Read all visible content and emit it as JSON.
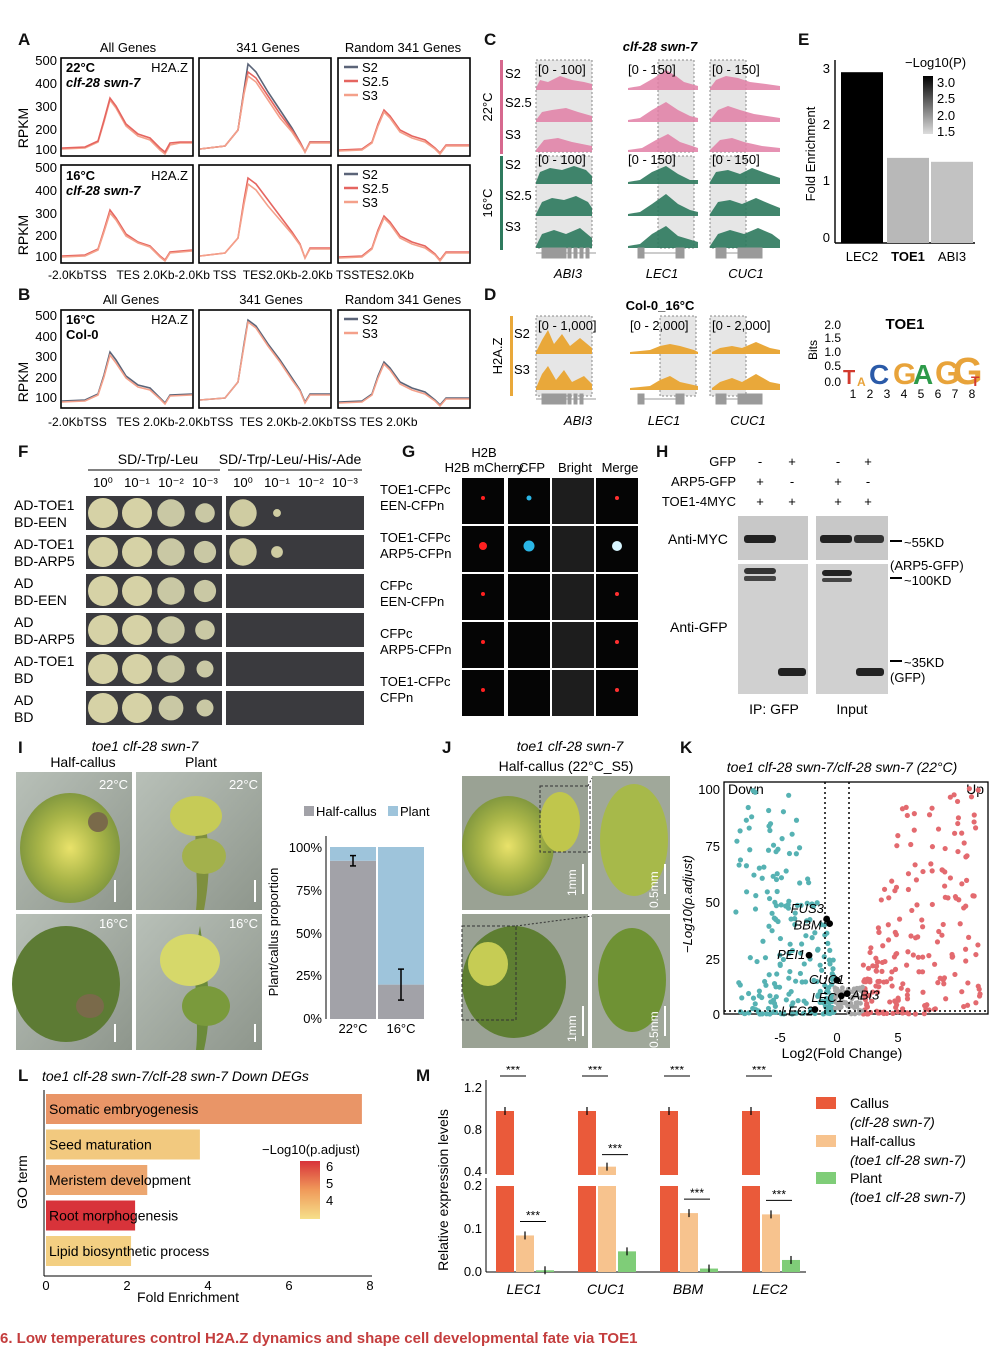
{
  "panelA": {
    "letter": "A",
    "col_titles": [
      "All Genes",
      "341 Genes",
      "Random 341 Genes"
    ],
    "ylabel": "RPKM",
    "yticks": [
      "500",
      "400",
      "300",
      "200",
      "100"
    ],
    "row1": {
      "temp": "22°C",
      "genotype": "clf-28 swn-7",
      "mark": "H2A.Z",
      "legend": [
        "S2",
        "S2.5",
        "S3"
      ]
    },
    "row2": {
      "temp": "16°C",
      "genotype": "clf-28 swn-7",
      "mark": "H2A.Z",
      "legend": [
        "S2",
        "S2.5",
        "S3"
      ]
    },
    "xticks": "-2.0KbTSS   TES 2.0Kb-2.0Kb TSS  TES2.0Kb-2.0Kb TSSTES2.0Kb"
  },
  "panelB": {
    "letter": "B",
    "col_titles": [
      "All Genes",
      "341 Genes",
      "Random 341 Genes"
    ],
    "ylabel": "RPKM",
    "yticks": [
      "500",
      "400",
      "300",
      "200",
      "100"
    ],
    "temp": "16°C",
    "genotype": "Col-0",
    "mark": "H2A.Z",
    "legend": [
      "S2",
      "S3"
    ],
    "xticks": "-2.0KbTSS   TES 2.0Kb-2.0KbTSS  TES 2.0Kb-2.0KbTSS TES 2.0Kb"
  },
  "panelC": {
    "letter": "C",
    "title": "clf-28 swn-7",
    "temps": [
      "22°C",
      "16°C"
    ],
    "stages": [
      "S2",
      "S2.5",
      "S3"
    ],
    "ranges_top": [
      "[0 - 100]",
      "[0 - 150]",
      "[0 - 150]"
    ],
    "ranges_bottom": [
      "[0 - 100]",
      "[0 - 150]",
      "[0 - 150]"
    ],
    "genes": [
      "ABI3",
      "LEC1",
      "CUC1"
    ]
  },
  "panelD": {
    "letter": "D",
    "title": "Col-0_16°C",
    "ylabel": "H2A.Z",
    "stages": [
      "S2",
      "S3"
    ],
    "ranges": [
      "[0 - 1,000]",
      "[0 - 2,000]",
      "[0 - 2,000]"
    ],
    "genes": [
      "ABI3",
      "LEC1",
      "CUC1"
    ]
  },
  "panelE": {
    "letter": "E",
    "ylabel": "Fold Enrichment",
    "legend_title": "−Log10(P)",
    "legend_ticks": [
      "3.0",
      "2.5",
      "2.0",
      "1.5"
    ],
    "motif_title": "TOE1",
    "motif_ylabel": "Bits",
    "motif_yticks": [
      "2.0",
      "1.5",
      "1.0",
      "0.5",
      "0.0"
    ],
    "motif_positions": [
      "1",
      "2",
      "3",
      "4",
      "5",
      "6",
      "7",
      "8"
    ]
  },
  "panelF": {
    "letter": "F",
    "media": [
      "SD/-Trp/-Leu",
      "SD/-Trp/-Leu/-His/-Ade"
    ],
    "dilutions": [
      "10⁰",
      "10⁻¹",
      "10⁻²",
      "10⁻³"
    ],
    "rows": [
      [
        "AD-TOE1",
        "BD-EEN"
      ],
      [
        "AD-TOE1",
        "BD-ARP5"
      ],
      [
        "AD",
        "BD-EEN"
      ],
      [
        "AD",
        "BD-ARP5"
      ],
      [
        "AD-TOE1",
        "BD"
      ],
      [
        "AD",
        "BD"
      ]
    ]
  },
  "panelG": {
    "letter": "G",
    "cols": [
      "H2B mCherry",
      "CFP",
      "Bright",
      "Merge"
    ],
    "rows": [
      [
        "TOE1-CFPc",
        "EEN-CFPn"
      ],
      [
        "TOE1-CFPc",
        "ARP5-CFPn"
      ],
      [
        "CFPc",
        "EEN-CFPn"
      ],
      [
        "CFPc",
        "ARP5-CFPn"
      ],
      [
        "TOE1-CFPc",
        "CFPn"
      ]
    ]
  },
  "panelH": {
    "letter": "H",
    "rows": [
      {
        "name": "GFP",
        "vals": [
          "-",
          "+",
          "-",
          "+"
        ]
      },
      {
        "name": "ARP5-GFP",
        "vals": [
          "+",
          "-",
          "+",
          "-"
        ]
      },
      {
        "name": "TOE1-4MYC",
        "vals": [
          "+",
          "+",
          "+",
          "+"
        ]
      }
    ],
    "blot_top": "Anti-MYC",
    "blot_bottom": "Anti-GFP",
    "sizes": [
      "~55KD",
      "(ARP5-GFP)",
      "~100KD",
      "~35KD",
      "(GFP)"
    ],
    "lanes": [
      "IP: GFP",
      "Input"
    ]
  },
  "panelI": {
    "letter": "I",
    "title": "toe1 clf-28 swn-7",
    "col_labels": [
      "Half-callus",
      "Plant"
    ],
    "temps": [
      "22°C",
      "22°C",
      "16°C",
      "16°C"
    ],
    "chart_legend": [
      "Half-callus",
      "Plant"
    ],
    "chart_ylabel": "Plant/callus proportion",
    "chart_yticks": [
      "100%",
      "75%",
      "50%",
      "25%",
      "0%"
    ]
  },
  "panelJ": {
    "letter": "J",
    "title": "toe1 clf-28 swn-7",
    "subtitle": "Half-callus  (22°C_S5)",
    "scales": [
      "1mm",
      "0.5mm",
      "1mm",
      "0.5mm"
    ]
  },
  "panelK": {
    "letter": "K",
    "title": "toe1 clf-28 swn-7/clf-28 swn-7 (22°C)",
    "down": "Down",
    "up": "Up",
    "ylabel": "−Log10(p.adjust)",
    "xlabel": "Log2(Fold Change)",
    "yticks": [
      "100",
      "75",
      "50",
      "25",
      "0"
    ],
    "xticks": [
      "-5",
      "0",
      "5"
    ]
  },
  "panelL": {
    "letter": "L",
    "title": "toe1 clf-28 swn-7/clf-28 swn-7 Down DEGs",
    "ylabel": "GO term",
    "xlabel": "Fold Enrichment",
    "legend_title": "−Log10(p.adjust)",
    "legend_ticks": [
      "6",
      "5",
      "4"
    ]
  },
  "panelM": {
    "letter": "M",
    "ylabel": "Relative expression levels",
    "yticks_top": [
      "1.2",
      "0.8",
      "0.4"
    ],
    "yticks_bottom": [
      "0.2",
      "0.1",
      "0.0"
    ],
    "sig": "***",
    "legend": [
      [
        "Callus",
        "(clf-28 swn-7)"
      ],
      [
        "Half-callus",
        "(toe1 clf-28 swn-7)"
      ],
      [
        "Plant",
        "(toe1 clf-28 swn-7)"
      ]
    ]
  },
  "caption": "6. Low temperatures control H2A.Z dynamics and shape cell developmental fate via TOE1",
  "chart_data": [
    {
      "type": "bar",
      "title": "",
      "categories": [
        "LEC2",
        "TOE1",
        "ABI3"
      ],
      "values": [
        3.05,
        1.52,
        1.45
      ],
      "ylabel": "Fold Enrichment",
      "ylim": [
        0,
        3.2
      ],
      "colors": [
        "#000000",
        "#b8b8b8",
        "#c2c2c2"
      ]
    },
    {
      "type": "bar",
      "title": "",
      "categories": [
        "22°C",
        "16°C"
      ],
      "series": [
        {
          "name": "Half-callus",
          "values": [
            0.92,
            0.2
          ]
        },
        {
          "name": "Plant",
          "values": [
            0.08,
            0.8
          ]
        }
      ],
      "errors": [
        [
          0.03,
          0.09
        ],
        [
          0.03,
          0.09
        ]
      ],
      "ylabel": "Plant/callus proportion",
      "ylim": [
        0,
        1
      ]
    },
    {
      "type": "bar",
      "title": "toe1 clf-28 swn-7/clf-28 swn-7 Down DEGs",
      "categories": [
        "Somatic embryogenesis",
        "Seed maturation",
        "Meristem development",
        "Root morphogenesis",
        "Lipid biosynthetic process"
      ],
      "values": [
        7.8,
        3.8,
        2.5,
        2.2,
        2.1
      ],
      "color_values": [
        4.8,
        3.9,
        4.5,
        6.5,
        3.8
      ],
      "xlabel": "Fold Enrichment",
      "xlim": [
        0,
        8
      ]
    },
    {
      "type": "bar",
      "title": "",
      "categories": [
        "LEC1",
        "CUC1",
        "BBM",
        "LEC2"
      ],
      "series": [
        {
          "name": "Callus",
          "values": [
            1.0,
            1.0,
            1.0,
            1.0
          ]
        },
        {
          "name": "Half-callus",
          "values": [
            0.085,
            0.47,
            0.137,
            0.134
          ]
        },
        {
          "name": "Plant",
          "values": [
            0.004,
            0.048,
            0.008,
            0.028
          ]
        }
      ],
      "ylabel": "Relative expression levels"
    },
    {
      "type": "scatter",
      "title": "toe1 clf-28 swn-7/clf-28 swn-7 (22°C)",
      "xlabel": "Log2(Fold Change)",
      "ylabel": "−Log10(p.adjust)",
      "xlim": [
        -8.5,
        9.5
      ],
      "ylim": [
        0,
        100
      ],
      "highlighted": [
        {
          "label": "FUS3",
          "x": -1.5,
          "y": 42
        },
        {
          "label": "BBM",
          "x": -1.3,
          "y": 40
        },
        {
          "label": "PEI1",
          "x": -2.7,
          "y": 26
        },
        {
          "label": "CUC1",
          "x": -0.8,
          "y": 15
        },
        {
          "label": "LEC1",
          "x": -0.5,
          "y": 8
        },
        {
          "label": "ABI3",
          "x": -0.1,
          "y": 9
        },
        {
          "label": "LEC2",
          "x": -2.3,
          "y": 2
        }
      ]
    }
  ]
}
